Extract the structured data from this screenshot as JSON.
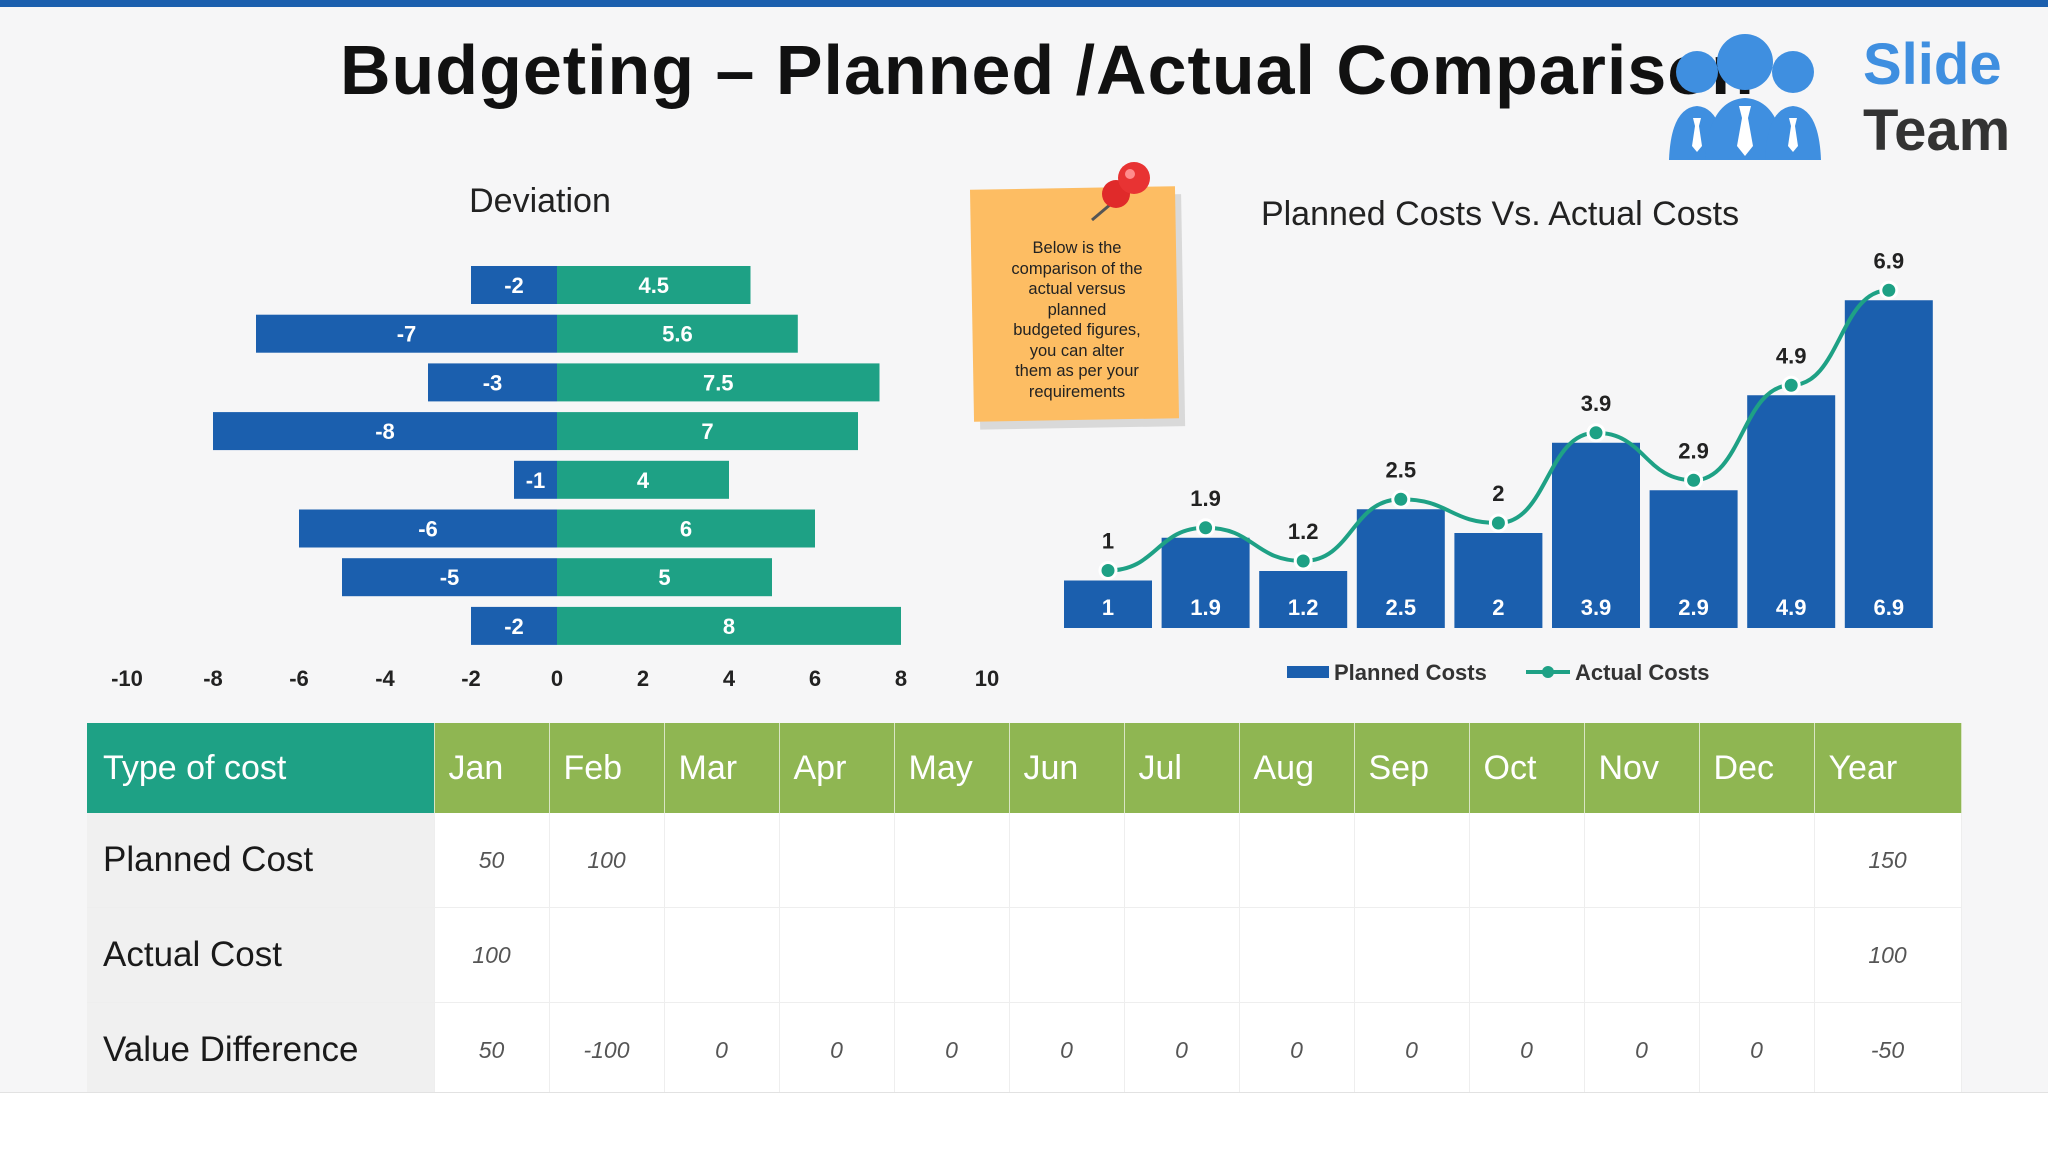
{
  "title": "Budgeting – Planned /Actual Comparison",
  "logo": {
    "line1": "Slide",
    "line2": "Team"
  },
  "colors": {
    "blue": "#1b5fae",
    "teal": "#1ea185",
    "green": "#8fb652",
    "note": "#fdbd63"
  },
  "note_text": [
    "Below is the",
    "comparison of the",
    "actual versus",
    "planned",
    "budgeted figures,",
    "you can alter",
    "them as per your",
    "requirements"
  ],
  "chart_data": [
    {
      "type": "bar",
      "orientation": "horizontal",
      "title": "Deviation",
      "xlim": [
        -10,
        10
      ],
      "x_ticks": [
        -10,
        -8,
        -6,
        -4,
        -2,
        0,
        2,
        4,
        6,
        8,
        10
      ],
      "series": [
        {
          "values": [
            -2,
            -7,
            -3,
            -8,
            -1,
            -6,
            -5,
            -2
          ]
        },
        {
          "values": [
            4.5,
            5.6,
            7.5,
            7,
            4,
            6,
            5,
            8
          ]
        }
      ]
    },
    {
      "type": "bar",
      "title": "Planned Costs Vs. Actual Costs",
      "legend_position": "bottom",
      "series": [
        {
          "name": "Planned Costs",
          "type": "bar",
          "values": [
            1,
            1.9,
            1.2,
            2.5,
            2,
            3.9,
            2.9,
            4.9,
            6.9
          ]
        },
        {
          "name": "Actual Costs",
          "type": "line",
          "values": [
            1,
            1.9,
            1.2,
            2.5,
            2,
            3.9,
            2.9,
            4.9,
            6.9
          ]
        }
      ]
    }
  ],
  "table": {
    "headers": [
      "Type of cost",
      "Jan",
      "Feb",
      "Mar",
      "Apr",
      "May",
      "Jun",
      "Jul",
      "Aug",
      "Sep",
      "Oct",
      "Nov",
      "Dec",
      "Year"
    ],
    "rows": [
      {
        "label": "Planned Cost",
        "cells": [
          "50",
          "100",
          "",
          "",
          "",
          "",
          "",
          "",
          "",
          "",
          "",
          "",
          "150"
        ]
      },
      {
        "label": "Actual Cost",
        "cells": [
          "100",
          "",
          "",
          "",
          "",
          "",
          "",
          "",
          "",
          "",
          "",
          "",
          "100"
        ]
      },
      {
        "label": "Value Difference",
        "cells": [
          "50",
          "-100",
          "0",
          "0",
          "0",
          "0",
          "0",
          "0",
          "0",
          "0",
          "0",
          "0",
          "-50"
        ]
      }
    ]
  }
}
